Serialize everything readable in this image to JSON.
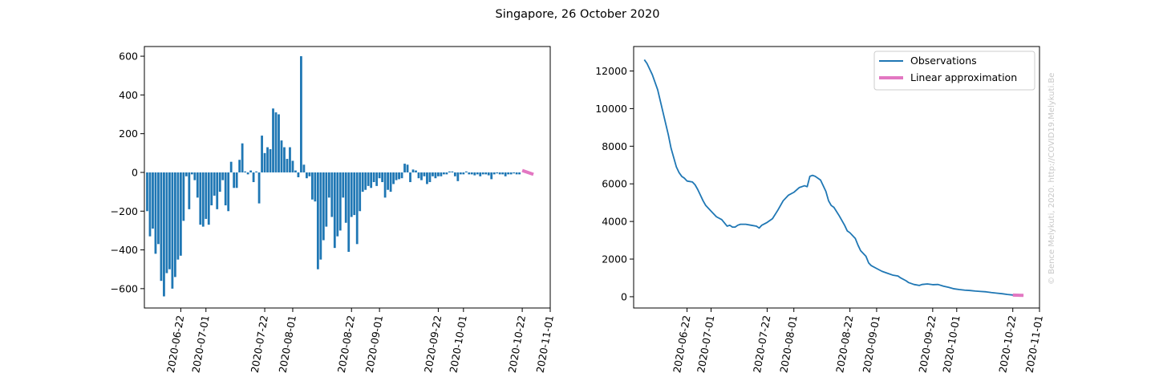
{
  "figure": {
    "title": "Singapore, 26 October 2020",
    "watermark": "© Bence Melykuti, 2020. http://COVID19.Melykuti.Be"
  },
  "colors": {
    "bars": "#1f77b4",
    "observations": "#1f77b4",
    "approximation": "#e377c2"
  },
  "chart_data": [
    {
      "type": "bar",
      "title": "",
      "xlabel": "",
      "ylabel": "",
      "x_date_start": "2020-06-10",
      "xlim": [
        "2020-06-09",
        "2020-11-01"
      ],
      "ylim": [
        -700,
        650
      ],
      "xticks": [
        "2020-06-22",
        "2020-07-01",
        "2020-07-22",
        "2020-08-01",
        "2020-08-22",
        "2020-09-01",
        "2020-09-22",
        "2020-10-01",
        "2020-10-22",
        "2020-11-01"
      ],
      "yticks": [
        -600,
        -400,
        -200,
        0,
        200,
        400,
        600
      ],
      "values": [
        -200,
        -330,
        -290,
        -420,
        -370,
        -560,
        -640,
        -520,
        -500,
        -600,
        -540,
        -450,
        -430,
        -250,
        -20,
        -190,
        -10,
        -40,
        -130,
        -270,
        -280,
        -240,
        -270,
        -170,
        -120,
        -190,
        -100,
        -40,
        -170,
        -200,
        55,
        -80,
        -80,
        65,
        150,
        5,
        -10,
        10,
        -50,
        5,
        -160,
        190,
        100,
        130,
        120,
        330,
        310,
        300,
        165,
        130,
        70,
        130,
        60,
        10,
        -25,
        600,
        40,
        -30,
        -20,
        -140,
        -150,
        -500,
        -450,
        -350,
        -280,
        -130,
        -230,
        -390,
        -330,
        -300,
        -130,
        -260,
        -410,
        -230,
        -220,
        -370,
        -200,
        -100,
        -90,
        -70,
        -80,
        -50,
        -70,
        -30,
        -50,
        -130,
        -90,
        -100,
        -60,
        -40,
        -35,
        -30,
        45,
        40,
        -50,
        15,
        10,
        -30,
        -40,
        -20,
        -60,
        -50,
        -20,
        -30,
        -20,
        -20,
        -10,
        -10,
        5,
        5,
        -20,
        -45,
        -10,
        -10,
        5,
        -10,
        -10,
        -15,
        -10,
        -20,
        -10,
        -10,
        -15,
        -35,
        -10,
        -5,
        -10,
        -10,
        -20,
        -10,
        -10,
        -5,
        -10,
        -10
      ],
      "series": [
        {
          "name": "Linear approximation",
          "points": [
            [
              "2020-10-22",
              10
            ],
            [
              "2020-10-26",
              -10
            ]
          ]
        }
      ]
    },
    {
      "type": "line",
      "title": "",
      "xlabel": "",
      "ylabel": "",
      "xlim": [
        "2020-06-02",
        "2020-11-01"
      ],
      "ylim": [
        -600,
        13300
      ],
      "xticks": [
        "2020-06-22",
        "2020-07-01",
        "2020-07-22",
        "2020-08-01",
        "2020-08-22",
        "2020-09-01",
        "2020-09-22",
        "2020-10-01",
        "2020-10-22",
        "2020-11-01"
      ],
      "yticks": [
        0,
        2000,
        4000,
        6000,
        8000,
        10000,
        12000
      ],
      "legend_position": "top-right",
      "series": [
        {
          "name": "Observations",
          "points": [
            [
              "2020-06-06",
              12600
            ],
            [
              "2020-06-07",
              12400
            ],
            [
              "2020-06-08",
              12100
            ],
            [
              "2020-06-09",
              11800
            ],
            [
              "2020-06-10",
              11400
            ],
            [
              "2020-06-11",
              11000
            ],
            [
              "2020-06-12",
              10400
            ],
            [
              "2020-06-13",
              9800
            ],
            [
              "2020-06-14",
              9200
            ],
            [
              "2020-06-15",
              8600
            ],
            [
              "2020-06-16",
              7900
            ],
            [
              "2020-06-17",
              7400
            ],
            [
              "2020-06-18",
              6900
            ],
            [
              "2020-06-19",
              6600
            ],
            [
              "2020-06-20",
              6400
            ],
            [
              "2020-06-21",
              6300
            ],
            [
              "2020-06-22",
              6150
            ],
            [
              "2020-06-24",
              6100
            ],
            [
              "2020-06-25",
              5950
            ],
            [
              "2020-06-26",
              5700
            ],
            [
              "2020-06-27",
              5400
            ],
            [
              "2020-06-28",
              5100
            ],
            [
              "2020-06-29",
              4850
            ],
            [
              "2020-07-01",
              4550
            ],
            [
              "2020-07-02",
              4400
            ],
            [
              "2020-07-03",
              4250
            ],
            [
              "2020-07-05",
              4100
            ],
            [
              "2020-07-07",
              3750
            ],
            [
              "2020-07-08",
              3800
            ],
            [
              "2020-07-09",
              3700
            ],
            [
              "2020-07-10",
              3700
            ],
            [
              "2020-07-11",
              3800
            ],
            [
              "2020-07-12",
              3850
            ],
            [
              "2020-07-14",
              3850
            ],
            [
              "2020-07-16",
              3800
            ],
            [
              "2020-07-18",
              3750
            ],
            [
              "2020-07-19",
              3650
            ],
            [
              "2020-07-20",
              3800
            ],
            [
              "2020-07-22",
              3950
            ],
            [
              "2020-07-24",
              4150
            ],
            [
              "2020-07-26",
              4600
            ],
            [
              "2020-07-28",
              5100
            ],
            [
              "2020-07-30",
              5400
            ],
            [
              "2020-08-01",
              5550
            ],
            [
              "2020-08-03",
              5800
            ],
            [
              "2020-08-05",
              5900
            ],
            [
              "2020-08-06",
              5850
            ],
            [
              "2020-08-07",
              6400
            ],
            [
              "2020-08-08",
              6450
            ],
            [
              "2020-08-09",
              6400
            ],
            [
              "2020-08-11",
              6200
            ],
            [
              "2020-08-13",
              5600
            ],
            [
              "2020-08-14",
              5100
            ],
            [
              "2020-08-15",
              4850
            ],
            [
              "2020-08-16",
              4750
            ],
            [
              "2020-08-18",
              4300
            ],
            [
              "2020-08-20",
              3800
            ],
            [
              "2020-08-21",
              3500
            ],
            [
              "2020-08-22",
              3400
            ],
            [
              "2020-08-24",
              3100
            ],
            [
              "2020-08-25",
              2750
            ],
            [
              "2020-08-26",
              2450
            ],
            [
              "2020-08-28",
              2150
            ],
            [
              "2020-08-29",
              1800
            ],
            [
              "2020-08-30",
              1650
            ],
            [
              "2020-09-01",
              1500
            ],
            [
              "2020-09-03",
              1350
            ],
            [
              "2020-09-05",
              1250
            ],
            [
              "2020-09-07",
              1150
            ],
            [
              "2020-09-09",
              1100
            ],
            [
              "2020-09-10",
              1000
            ],
            [
              "2020-09-12",
              850
            ],
            [
              "2020-09-13",
              750
            ],
            [
              "2020-09-15",
              650
            ],
            [
              "2020-09-17",
              600
            ],
            [
              "2020-09-18",
              650
            ],
            [
              "2020-09-20",
              680
            ],
            [
              "2020-09-22",
              640
            ],
            [
              "2020-09-24",
              650
            ],
            [
              "2020-09-26",
              560
            ],
            [
              "2020-09-28",
              500
            ],
            [
              "2020-09-30",
              420
            ],
            [
              "2020-10-02",
              380
            ],
            [
              "2020-10-04",
              350
            ],
            [
              "2020-10-06",
              330
            ],
            [
              "2020-10-08",
              300
            ],
            [
              "2020-10-10",
              280
            ],
            [
              "2020-10-12",
              260
            ],
            [
              "2020-10-14",
              220
            ],
            [
              "2020-10-16",
              190
            ],
            [
              "2020-10-18",
              160
            ],
            [
              "2020-10-20",
              120
            ],
            [
              "2020-10-22",
              90
            ],
            [
              "2020-10-24",
              70
            ],
            [
              "2020-10-26",
              50
            ]
          ]
        },
        {
          "name": "Linear approximation",
          "points": [
            [
              "2020-10-22",
              90
            ],
            [
              "2020-10-26",
              70
            ]
          ]
        }
      ]
    }
  ]
}
